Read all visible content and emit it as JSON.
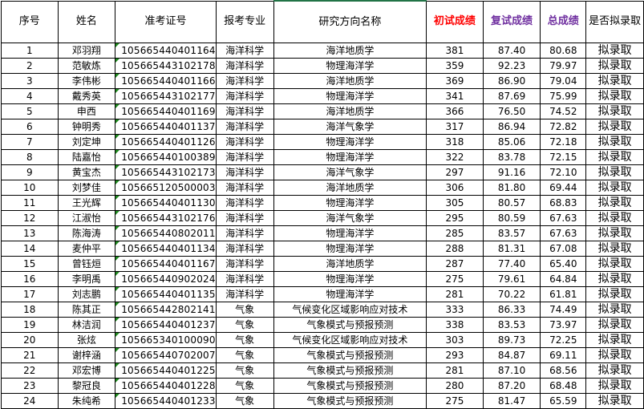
{
  "headers": [
    "序号",
    "姓名",
    "准考证号",
    "报考专业",
    "研究方向名称",
    "初试成绩",
    "复试成绩",
    "总成绩",
    "是否拟录取"
  ],
  "colors": {
    "initial_score_header": "#ff0000",
    "retest_header": "#7030a0",
    "total_header": "#7030a0",
    "id_marker": "#1f8a1f"
  },
  "rows": [
    [
      "1",
      "邓羽翔",
      "105665440401164",
      "海洋科学",
      "海洋地质学",
      "381",
      "87.40",
      "80.68",
      "拟录取"
    ],
    [
      "2",
      "范敏炼",
      "105665443102178",
      "海洋科学",
      "物理海洋学",
      "359",
      "92.23",
      "79.97",
      "拟录取"
    ],
    [
      "3",
      "李伟彬",
      "105665440401166",
      "海洋科学",
      "海洋地质学",
      "369",
      "86.90",
      "79.04",
      "拟录取"
    ],
    [
      "4",
      "戴秀英",
      "105665443102177",
      "海洋科学",
      "物理海洋学",
      "341",
      "87.69",
      "75.99",
      "拟录取"
    ],
    [
      "5",
      "申西",
      "105665440401169",
      "海洋科学",
      "海洋地质学",
      "366",
      "76.50",
      "74.52",
      "拟录取"
    ],
    [
      "6",
      "钟明秀",
      "105665440401137",
      "海洋科学",
      "海洋气象学",
      "317",
      "86.94",
      "72.82",
      "拟录取"
    ],
    [
      "7",
      "刘定坤",
      "105665440401126",
      "海洋科学",
      "物理海洋学",
      "318",
      "85.06",
      "72.18",
      "拟录取"
    ],
    [
      "8",
      "陆嘉怡",
      "105665440100389",
      "海洋科学",
      "物理海洋学",
      "322",
      "83.78",
      "72.15",
      "拟录取"
    ],
    [
      "9",
      "黄宝杰",
      "105665443102173",
      "海洋科学",
      "海洋气象学",
      "297",
      "91.16",
      "72.10",
      "拟录取"
    ],
    [
      "10",
      "刘梦佳",
      "105665120500003",
      "海洋科学",
      "海洋地质学",
      "306",
      "81.80",
      "69.44",
      "拟录取"
    ],
    [
      "11",
      "王光辉",
      "105665440401130",
      "海洋科学",
      "物理海洋学",
      "305",
      "80.57",
      "68.83",
      "拟录取"
    ],
    [
      "12",
      "江淑怡",
      "105665443102176",
      "海洋科学",
      "海洋气象学",
      "295",
      "80.59",
      "67.63",
      "拟录取"
    ],
    [
      "13",
      "陈海涛",
      "105665440802011",
      "海洋科学",
      "物理海洋学",
      "285",
      "83.57",
      "67.63",
      "拟录取"
    ],
    [
      "14",
      "麦仲平",
      "105665440401134",
      "海洋科学",
      "物理海洋学",
      "288",
      "81.31",
      "67.08",
      "拟录取"
    ],
    [
      "15",
      "曾钰烜",
      "105665440401167",
      "海洋科学",
      "海洋地质学",
      "287",
      "77.40",
      "65.40",
      "拟录取"
    ],
    [
      "16",
      "李明禹",
      "105665440902024",
      "海洋科学",
      "物理海洋学",
      "275",
      "79.61",
      "64.84",
      "拟录取"
    ],
    [
      "17",
      "刘志鹏",
      "105665440401135",
      "海洋科学",
      "物理海洋学",
      "281",
      "70.22",
      "61.81",
      "拟录取"
    ],
    [
      "18",
      "陈其正",
      "105665442802141",
      "气象",
      "气候变化区域影响应对技术",
      "333",
      "86.33",
      "74.49",
      "拟录取"
    ],
    [
      "19",
      "林洁润",
      "105665440401237",
      "气象",
      "气象模式与预报预测",
      "338",
      "83.53",
      "73.97",
      "拟录取"
    ],
    [
      "20",
      "张炫",
      "105665340100090",
      "气象",
      "气候变化区域影响应对技术",
      "303",
      "89.73",
      "72.25",
      "拟录取"
    ],
    [
      "21",
      "谢梓涵",
      "105665440702007",
      "气象",
      "气象模式与预报预测",
      "293",
      "84.87",
      "69.11",
      "拟录取"
    ],
    [
      "22",
      "邓宏博",
      "105665440401225",
      "气象",
      "气象模式与预报预测",
      "281",
      "87.10",
      "68.56",
      "拟录取"
    ],
    [
      "23",
      "黎冠良",
      "105665440401228",
      "气象",
      "气象模式与预报预测",
      "280",
      "87.20",
      "68.48",
      "拟录取"
    ],
    [
      "24",
      "朱纯希",
      "105665440401233",
      "气象",
      "气象模式与预报预测",
      "275",
      "81.47",
      "65.59",
      "拟录取"
    ]
  ]
}
